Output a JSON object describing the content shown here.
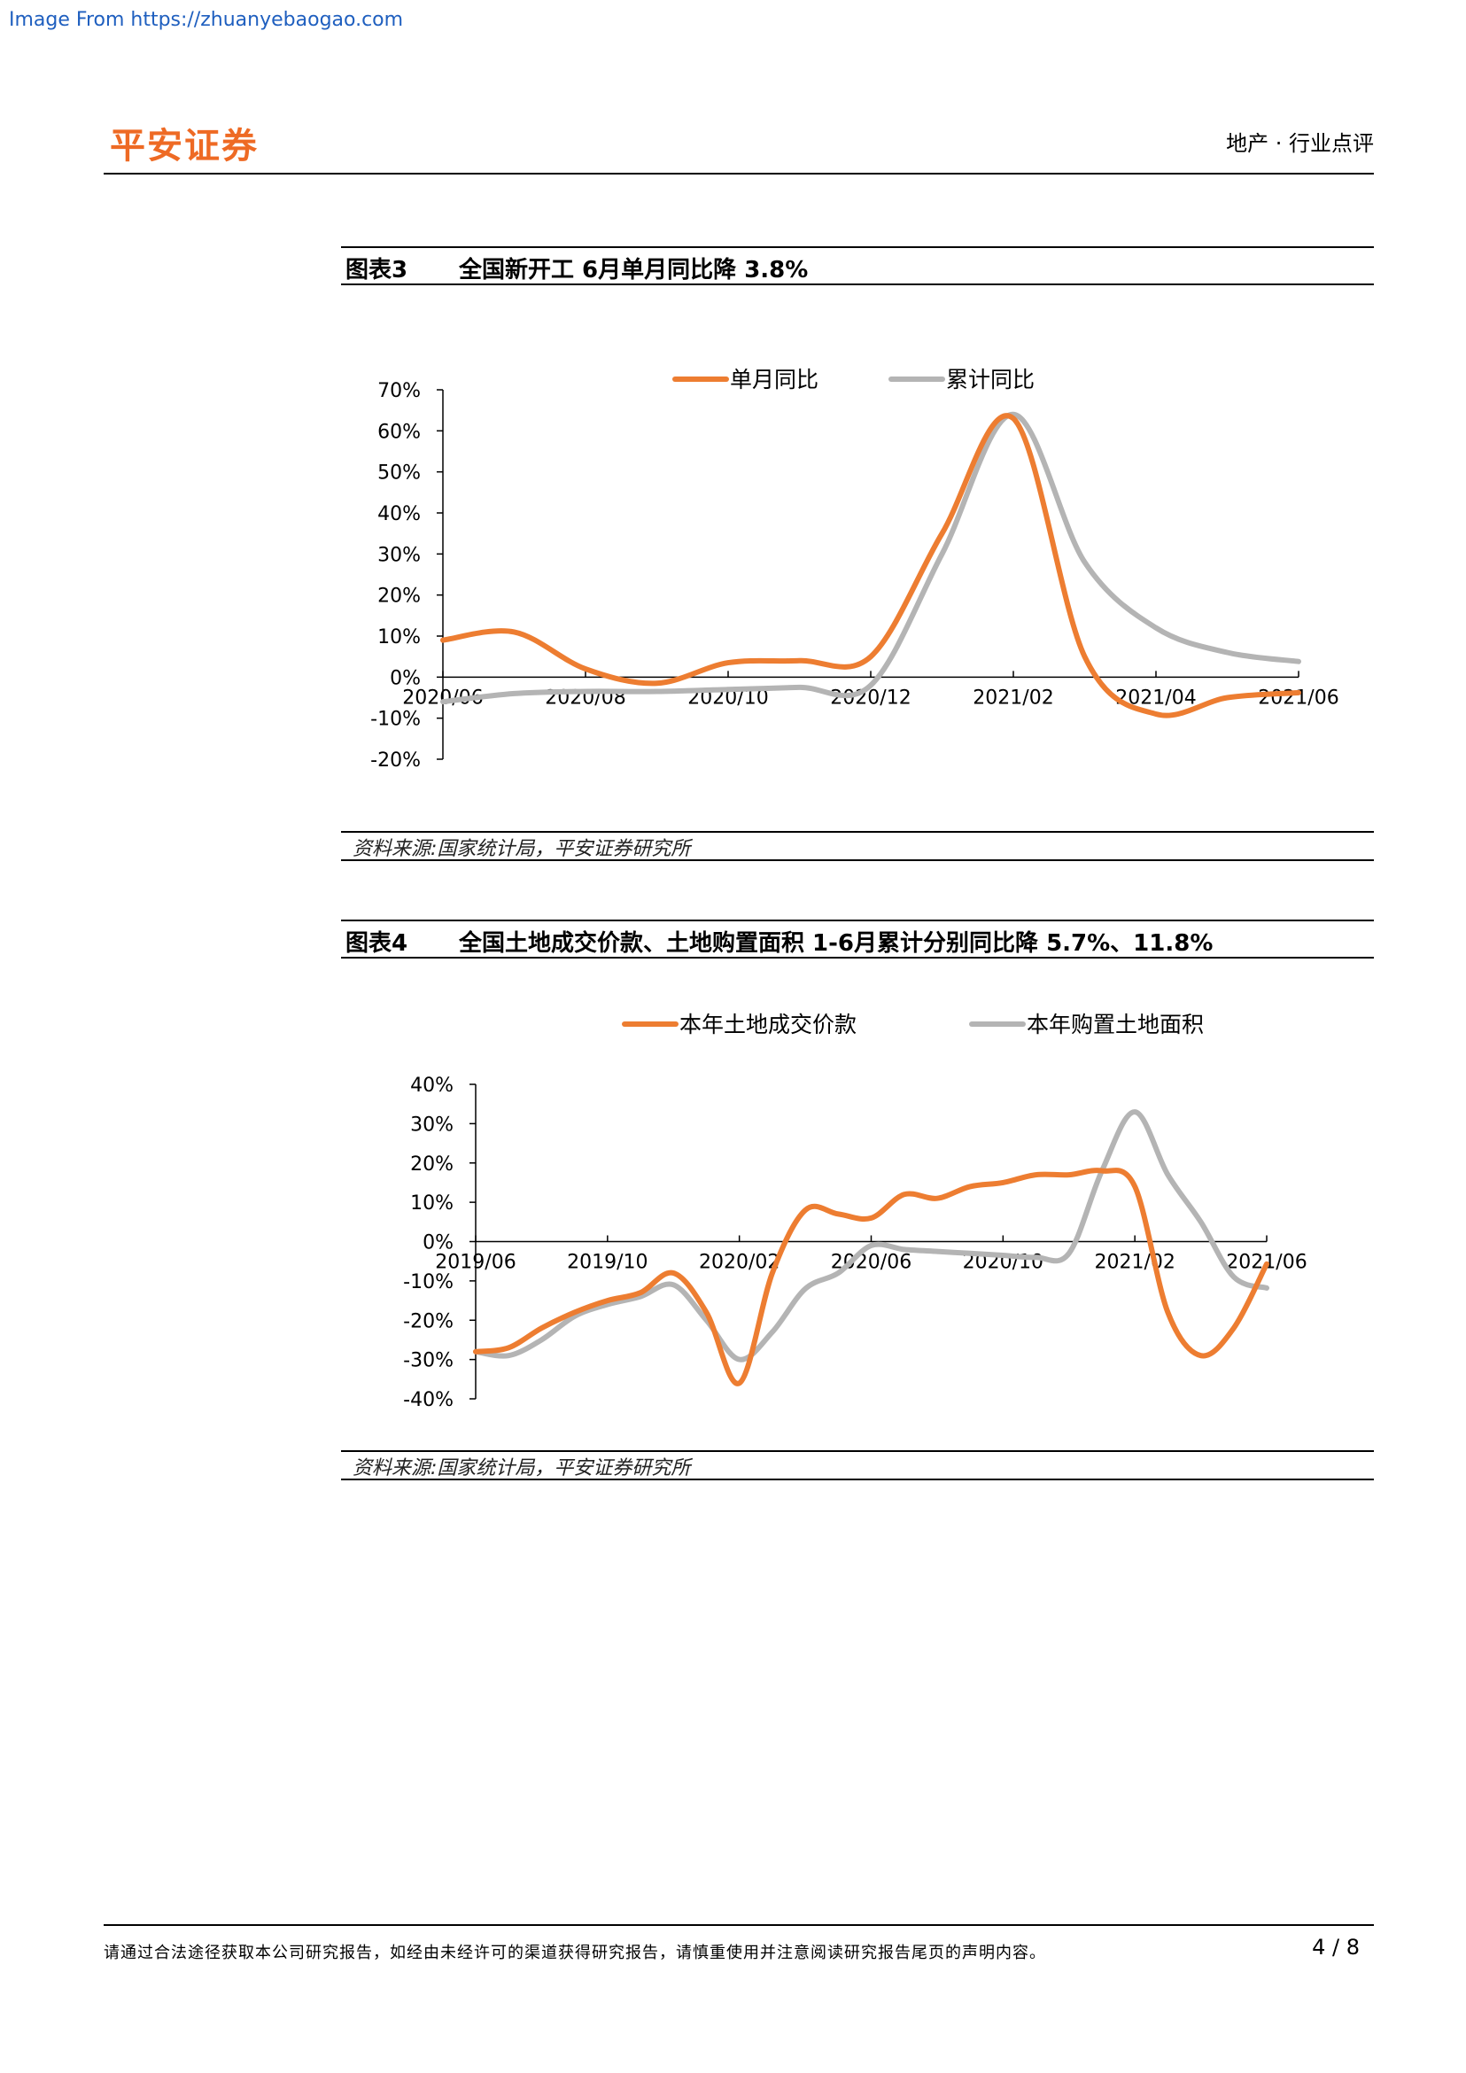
{
  "source_link": "Image From https://zhuanyebaogao.com",
  "header": {
    "logo": "平安证券",
    "category": "地产 · 行业点评"
  },
  "figure3": {
    "label": "图表3",
    "title": "全国新开工 6月单月同比降 3.8%",
    "source": "资料来源:国家统计局，平安证券研究所"
  },
  "figure4": {
    "label": "图表4",
    "title": "全国土地成交价款、土地购置面积 1-6月累计分别同比降 5.7%、11.8%",
    "source": "资料来源:国家统计局，平安证券研究所"
  },
  "footer": {
    "disclaimer": "请通过合法途径获取本公司研究报告，如经由未经许可的渠道获得研究报告，请慎重使用并注意阅读研究报告尾页的声明内容。",
    "page": "4 / 8"
  },
  "colors": {
    "orange": "#ed7d31",
    "gray": "#b4b4b4",
    "logo": "#ee6a24"
  },
  "chart_data": [
    {
      "type": "line",
      "x": [
        "2020/06",
        "2020/07",
        "2020/08",
        "2020/09",
        "2020/10",
        "2020/11",
        "2020/12",
        "2021/01",
        "2021/02",
        "2021/03",
        "2021/04",
        "2021/05",
        "2021/06"
      ],
      "x_tick_labels": [
        "2020/06",
        "2020/08",
        "2020/10",
        "2020/12",
        "2021/02",
        "2021/04",
        "2021/06"
      ],
      "series": [
        {
          "name": "单月同比",
          "color": "#ed7d31",
          "values": [
            9,
            11,
            2,
            -1.5,
            3.5,
            4,
            5,
            35,
            63,
            5,
            -9,
            -5,
            -3.8
          ]
        },
        {
          "name": "累计同比",
          "color": "#b4b4b4",
          "values": [
            -6,
            -4,
            -3.5,
            -3.5,
            -3,
            -2.5,
            -2,
            30,
            64,
            28,
            12,
            6,
            3.8
          ]
        }
      ],
      "y_ticks": [
        "70%",
        "60%",
        "50%",
        "40%",
        "30%",
        "20%",
        "10%",
        "0%",
        "-10%",
        "-20%"
      ],
      "ylim": [
        -20,
        70
      ],
      "legend": "top-center",
      "grid": false
    },
    {
      "type": "line",
      "x": [
        "2019/06",
        "2019/07",
        "2019/08",
        "2019/09",
        "2019/10",
        "2019/11",
        "2019/12",
        "2020/01",
        "2020/02",
        "2020/03",
        "2020/04",
        "2020/05",
        "2020/06",
        "2020/07",
        "2020/08",
        "2020/09",
        "2020/10",
        "2020/11",
        "2020/12",
        "2021/01",
        "2021/02",
        "2021/03",
        "2021/04",
        "2021/05",
        "2021/06"
      ],
      "x_tick_labels": [
        "2019/06",
        "2019/10",
        "2020/02",
        "2020/06",
        "2020/10",
        "2021/02",
        "2021/06"
      ],
      "series": [
        {
          "name": "本年土地成交价款",
          "color": "#ed7d31",
          "values": [
            -28,
            -27,
            -22,
            -18,
            -15,
            -13,
            -8,
            -18,
            -36,
            -8,
            8,
            7,
            6,
            12,
            11,
            14,
            15,
            17,
            17,
            18,
            14,
            -18,
            -29,
            -22,
            -5.7
          ]
        },
        {
          "name": "本年购置土地面积",
          "color": "#b4b4b4",
          "values": [
            -28,
            -29,
            -25,
            -19,
            -16,
            -14,
            -11,
            -20,
            -30,
            -23,
            -12,
            -8,
            -1,
            -2,
            -2.5,
            -3,
            -3.5,
            -4,
            -3,
            18,
            33,
            17,
            5,
            -9,
            -11.8
          ]
        }
      ],
      "y_ticks": [
        "40%",
        "30%",
        "20%",
        "10%",
        "0%",
        "-10%",
        "-20%",
        "-30%",
        "-40%"
      ],
      "ylim": [
        -40,
        40
      ],
      "legend": "top-center",
      "grid": false
    }
  ]
}
